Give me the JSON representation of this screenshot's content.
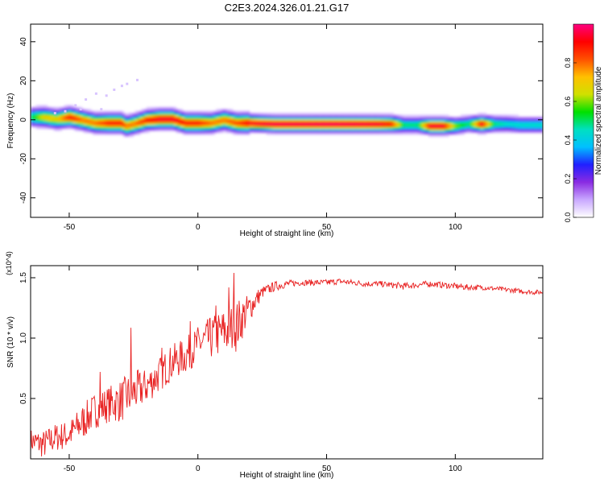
{
  "figure_title": "C2E3.2024.326.01.21.G17",
  "chart_data": [
    {
      "type": "heatmap",
      "title": "C2E3.2024.326.01.21.G17",
      "xlabel": "Height of straight line (km)",
      "ylabel": "Frequency (Hz)",
      "xlim": [
        -65,
        134
      ],
      "ylim": [
        -50,
        49
      ],
      "x_ticks": [
        -50,
        0,
        50,
        100
      ],
      "y_ticks": [
        -40,
        -20,
        0,
        20,
        40
      ],
      "colorbar": {
        "label": "Normalized spectral amplitude",
        "range": [
          0,
          1
        ],
        "ticks": [
          0.0,
          0.2,
          0.4,
          0.6,
          0.8
        ],
        "colors": [
          "#ffffff",
          "#c9a8ff",
          "#8a2be2",
          "#2020ff",
          "#00c0ff",
          "#00e0c0",
          "#00e000",
          "#d0e000",
          "#ffc000",
          "#ff5000",
          "#ff0000",
          "#ff0080"
        ]
      },
      "ridge": {
        "description": "Dominant frequency band vs height",
        "height_km": [
          -65,
          -60,
          -55,
          -50,
          -45,
          -40,
          -35,
          -30,
          -28,
          -25,
          -20,
          -15,
          -10,
          -5,
          0,
          5,
          10,
          15,
          20,
          30,
          40,
          50,
          60,
          70,
          75,
          80,
          85,
          90,
          95,
          100,
          105,
          110,
          115,
          120,
          125,
          134
        ],
        "frequency_hz": [
          1.5,
          1.5,
          0.5,
          1.5,
          0,
          -1.5,
          -1.5,
          -1.5,
          -3,
          -2,
          0,
          0.5,
          0.5,
          -1.5,
          -1.5,
          -1.5,
          0,
          -1.5,
          -1.5,
          -2,
          -2,
          -2,
          -2,
          -2,
          -2,
          -2.5,
          -2.5,
          -3,
          -3,
          -3,
          -2,
          -2,
          -2,
          -2,
          -2.5,
          -2.5
        ],
        "peak_amplitude": [
          0.5,
          0.7,
          0.7,
          0.9,
          0.8,
          0.8,
          0.9,
          0.9,
          0.8,
          0.8,
          0.9,
          0.95,
          0.95,
          0.9,
          0.9,
          0.8,
          0.8,
          0.85,
          0.95,
          0.97,
          0.97,
          0.98,
          0.97,
          0.95,
          0.9,
          0.5,
          0.5,
          0.95,
          0.95,
          0.6,
          0.5,
          0.95,
          0.5,
          0.45,
          0.45,
          0.45
        ]
      }
    },
    {
      "type": "line",
      "xlabel": "Height of straight line (km)",
      "ylabel": "SNR (10 * v/v)",
      "y_multiplier": "(x10^4)",
      "xlim": [
        -65,
        134
      ],
      "ylim": [
        0,
        1.6
      ],
      "x_ticks": [
        -50,
        0,
        50,
        100
      ],
      "y_ticks": [
        0.5,
        1.0,
        1.5
      ],
      "color": "#e82020",
      "envelope_x": [
        -65,
        -60,
        -55,
        -50,
        -45,
        -40,
        -35,
        -30,
        -25,
        -20,
        -15,
        -10,
        -5,
        0,
        5,
        10,
        15,
        20,
        25,
        30,
        35,
        40,
        45,
        50,
        55,
        60,
        65,
        70,
        75,
        80,
        85,
        90,
        95,
        100,
        105,
        110,
        115,
        120,
        125,
        130,
        134
      ],
      "envelope_y": [
        0.15,
        0.12,
        0.18,
        0.2,
        0.3,
        0.4,
        0.45,
        0.48,
        0.55,
        0.6,
        0.7,
        0.8,
        0.85,
        0.95,
        1.0,
        1.05,
        1.1,
        1.25,
        1.38,
        1.43,
        1.45,
        1.46,
        1.46,
        1.46,
        1.47,
        1.46,
        1.45,
        1.45,
        1.44,
        1.43,
        1.44,
        1.45,
        1.44,
        1.43,
        1.42,
        1.42,
        1.41,
        1.4,
        1.39,
        1.38,
        1.38
      ],
      "noise_amplitude": [
        0.1,
        0.12,
        0.12,
        0.12,
        0.15,
        0.15,
        0.15,
        0.18,
        0.18,
        0.15,
        0.15,
        0.15,
        0.15,
        0.15,
        0.18,
        0.2,
        0.22,
        0.12,
        0.05,
        0.04,
        0.03,
        0.025,
        0.025,
        0.025,
        0.025,
        0.025,
        0.025,
        0.025,
        0.025,
        0.03,
        0.025,
        0.025,
        0.025,
        0.025,
        0.025,
        0.02,
        0.02,
        0.02,
        0.02,
        0.02,
        0.02
      ]
    }
  ]
}
